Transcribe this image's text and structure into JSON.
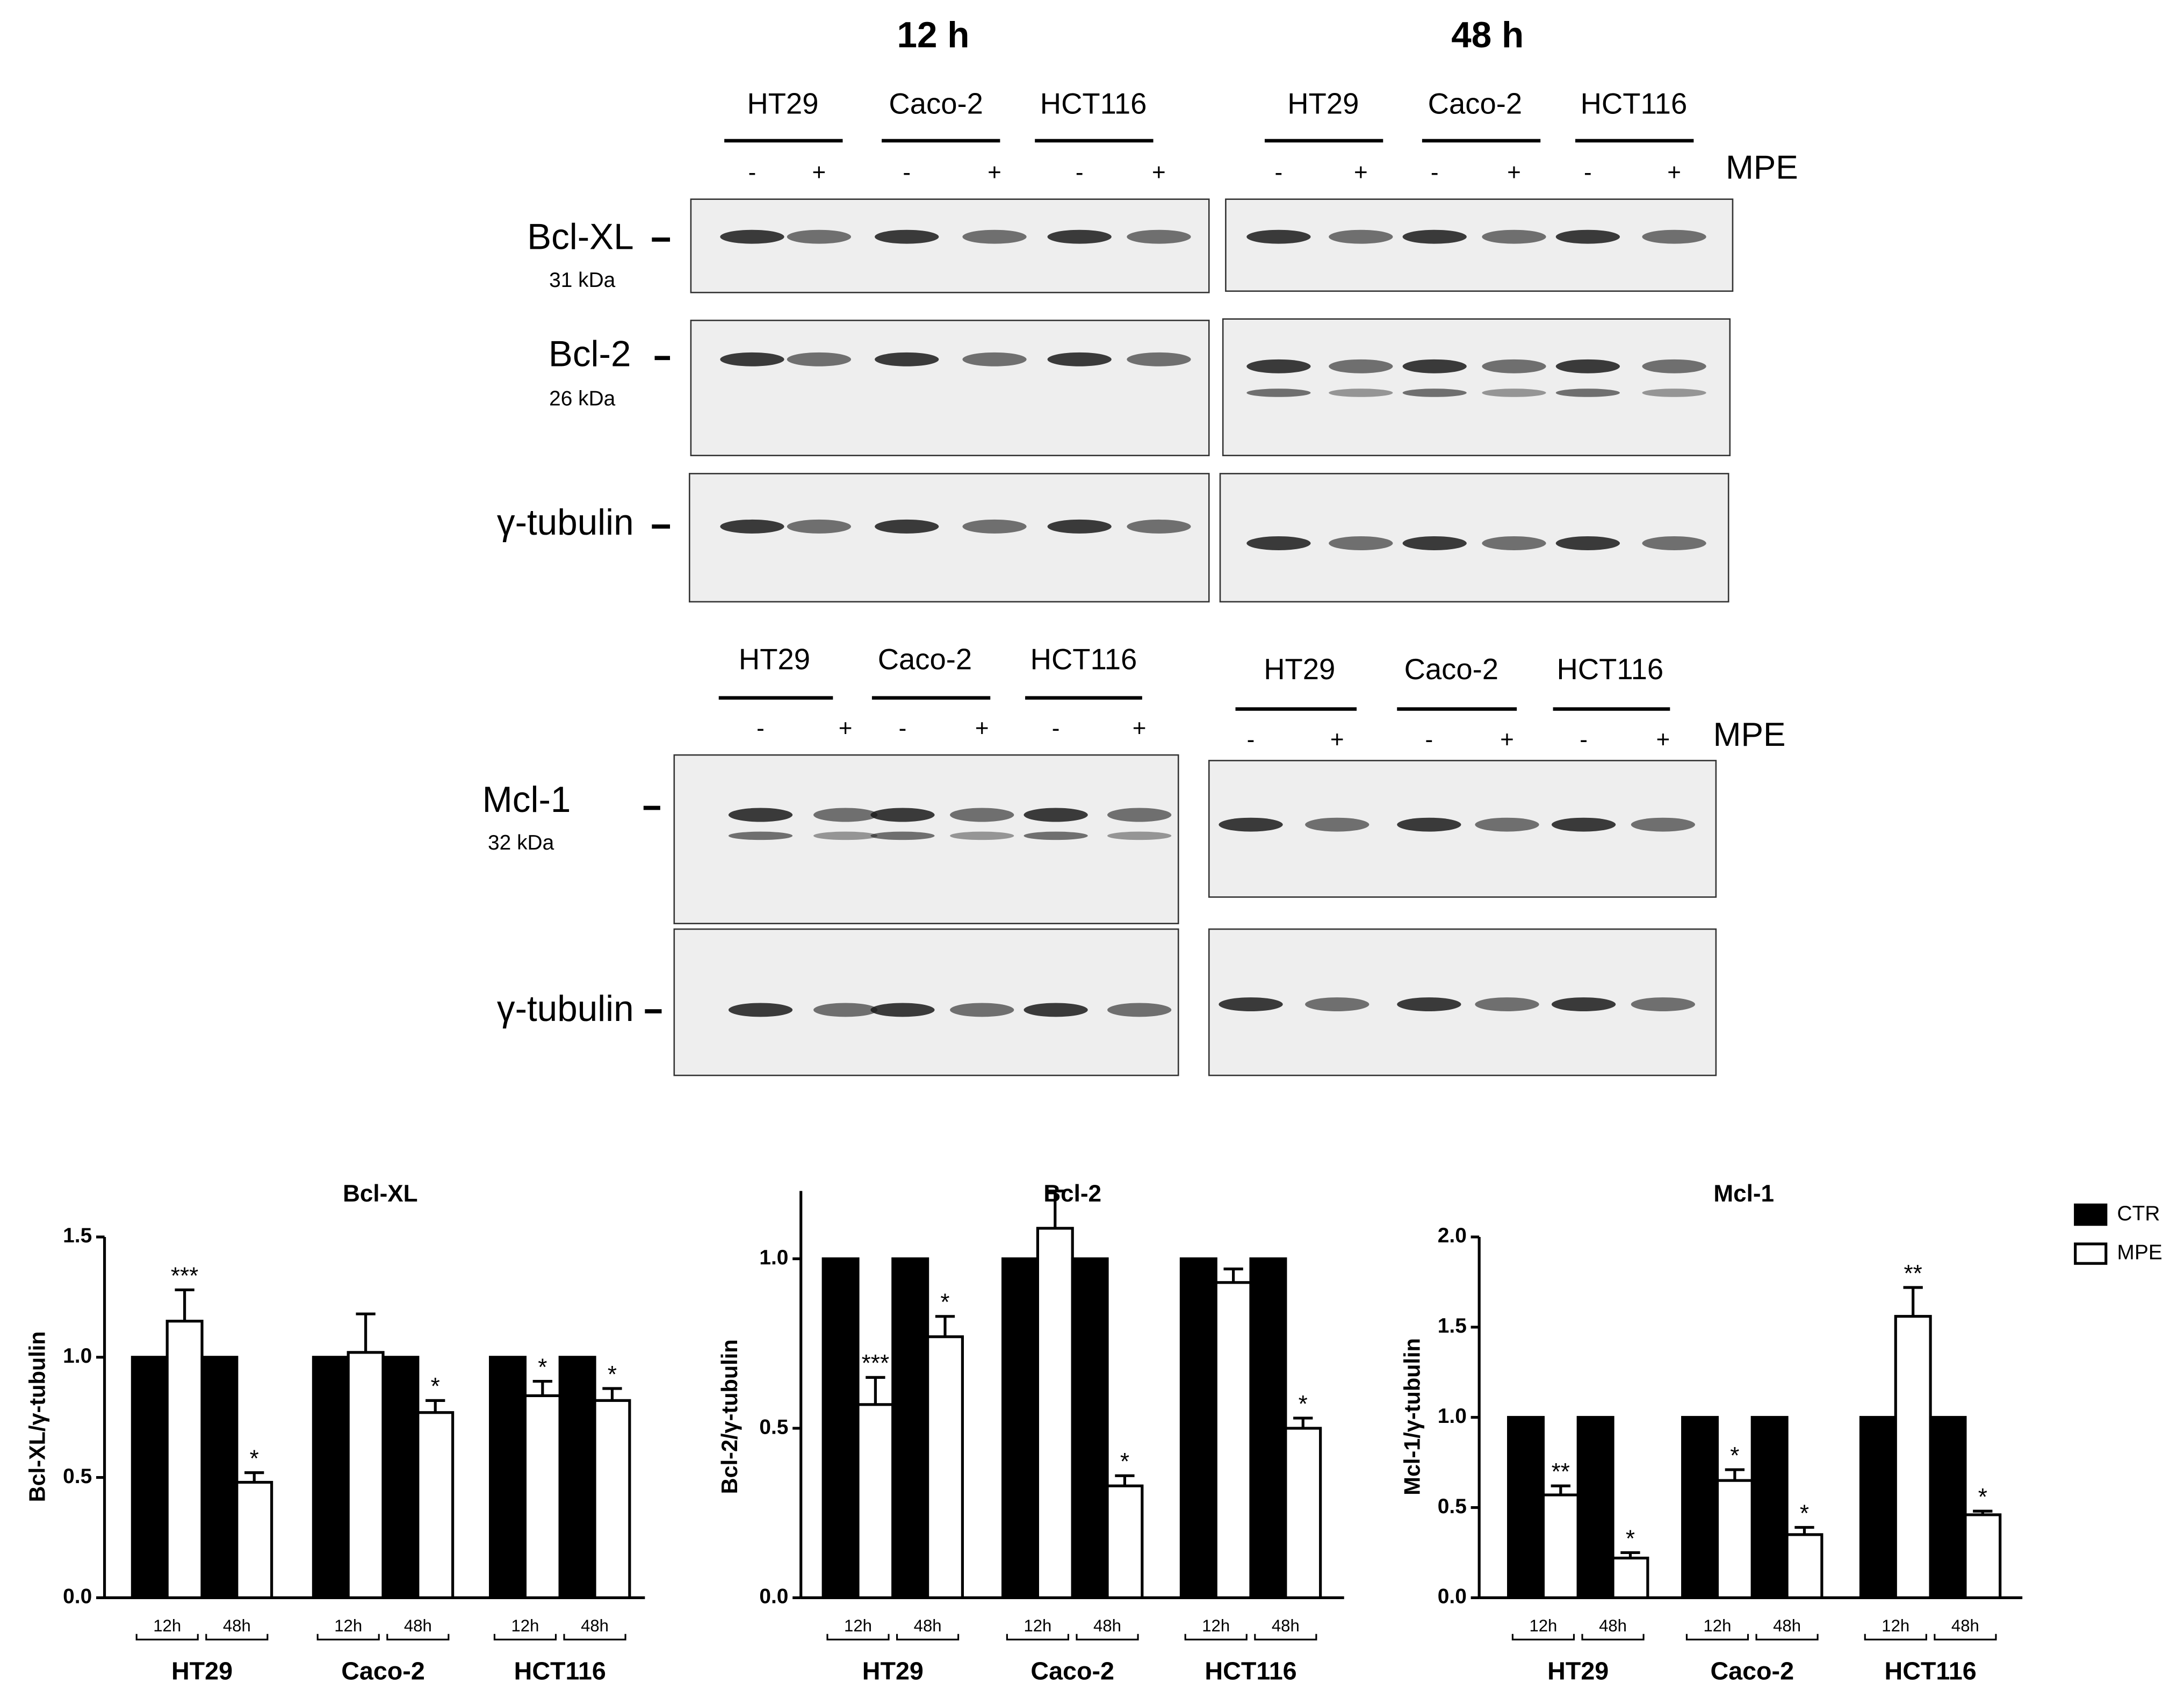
{
  "blots": {
    "time_points": [
      "12 h",
      "48 h"
    ],
    "cell_lines": [
      "HT29",
      "Caco-2",
      "HCT116"
    ],
    "treatments": [
      "-",
      "+"
    ],
    "treatment_label": "MPE",
    "proteins": [
      {
        "name": "Bcl-XL",
        "size": "31 kDa"
      },
      {
        "name": "Bcl-2",
        "size": "26 kDa"
      },
      {
        "name": "γ-tubulin"
      },
      {
        "name": "Mcl-1",
        "size": "32 kDa"
      }
    ]
  },
  "chart_data": [
    {
      "type": "bar",
      "title": "Bcl-XL",
      "y_label": "Bcl-XL/γ-tubulin",
      "groups": [
        "HT29",
        "Caco-2",
        "HCT116"
      ],
      "categories": [
        "12h",
        "48h",
        "12h",
        "48h",
        "12h",
        "48h"
      ],
      "series": [
        {
          "name": "CTR",
          "color": "#000000",
          "values": [
            1,
            1,
            1,
            1,
            1,
            1
          ]
        },
        {
          "name": "MPE",
          "color": "#ffffff",
          "values": [
            1.15,
            0.48,
            1.02,
            0.77,
            0.84,
            0.82
          ],
          "errors": [
            0.13,
            0.04,
            0.16,
            0.05,
            0.06,
            0.05
          ],
          "annotations": [
            "***",
            "*",
            null,
            "*",
            "*",
            "*"
          ]
        }
      ],
      "ylim": [
        0,
        1.5
      ],
      "yticks": [
        {
          "value": 0,
          "label": "0.0"
        },
        {
          "value": 0.5,
          "label": "0.5"
        },
        {
          "value": 1,
          "label": "1.0"
        },
        {
          "value": 1.5,
          "label": "1.5"
        }
      ],
      "legend": false
    },
    {
      "type": "bar",
      "title": "Bcl-2",
      "y_label": "Bcl-2/γ-tubulin",
      "groups": [
        "HT29",
        "Caco-2",
        "HCT116"
      ],
      "categories": [
        "12h",
        "48h",
        "12h",
        "48h",
        "12h",
        "48h"
      ],
      "series": [
        {
          "name": "CTR",
          "color": "#000000",
          "values": [
            1,
            1,
            1,
            1,
            1,
            1
          ]
        },
        {
          "name": "MPE",
          "color": "#ffffff",
          "values": [
            0.57,
            0.77,
            1.09,
            0.33,
            0.93,
            0.5
          ],
          "errors": [
            0.08,
            0.06,
            0.11,
            0.03,
            0.04,
            0.03
          ],
          "annotations": [
            "***",
            "*",
            null,
            "*",
            null,
            "*"
          ]
        }
      ],
      "ylim": [
        0,
        1.2
      ],
      "yticks": [
        {
          "value": 0,
          "label": "0.0"
        },
        {
          "value": 0.5,
          "label": "0.5"
        },
        {
          "value": 1,
          "label": "1.0"
        }
      ],
      "legend": false
    },
    {
      "type": "bar",
      "title": "Mcl-1",
      "y_label": "Mcl-1/γ-tubulin",
      "groups": [
        "HT29",
        "Caco-2",
        "HCT116"
      ],
      "categories": [
        "12h",
        "48h",
        "12h",
        "48h",
        "12h",
        "48h"
      ],
      "series": [
        {
          "name": "CTR",
          "color": "#000000",
          "values": [
            1,
            1,
            1,
            1,
            1,
            1
          ]
        },
        {
          "name": "MPE",
          "color": "#ffffff",
          "values": [
            0.57,
            0.22,
            0.65,
            0.35,
            1.56,
            0.46
          ],
          "errors": [
            0.05,
            0.03,
            0.06,
            0.04,
            0.16,
            0.02
          ],
          "annotations": [
            "**",
            "*",
            "*",
            "*",
            "**",
            "*"
          ]
        }
      ],
      "ylim": [
        0,
        2
      ],
      "yticks": [
        {
          "value": 0,
          "label": "0.0"
        },
        {
          "value": 0.5,
          "label": "0.5"
        },
        {
          "value": 1,
          "label": "1.0"
        },
        {
          "value": 1.5,
          "label": "1.5"
        },
        {
          "value": 2,
          "label": "2.0"
        }
      ],
      "legend": true
    }
  ]
}
